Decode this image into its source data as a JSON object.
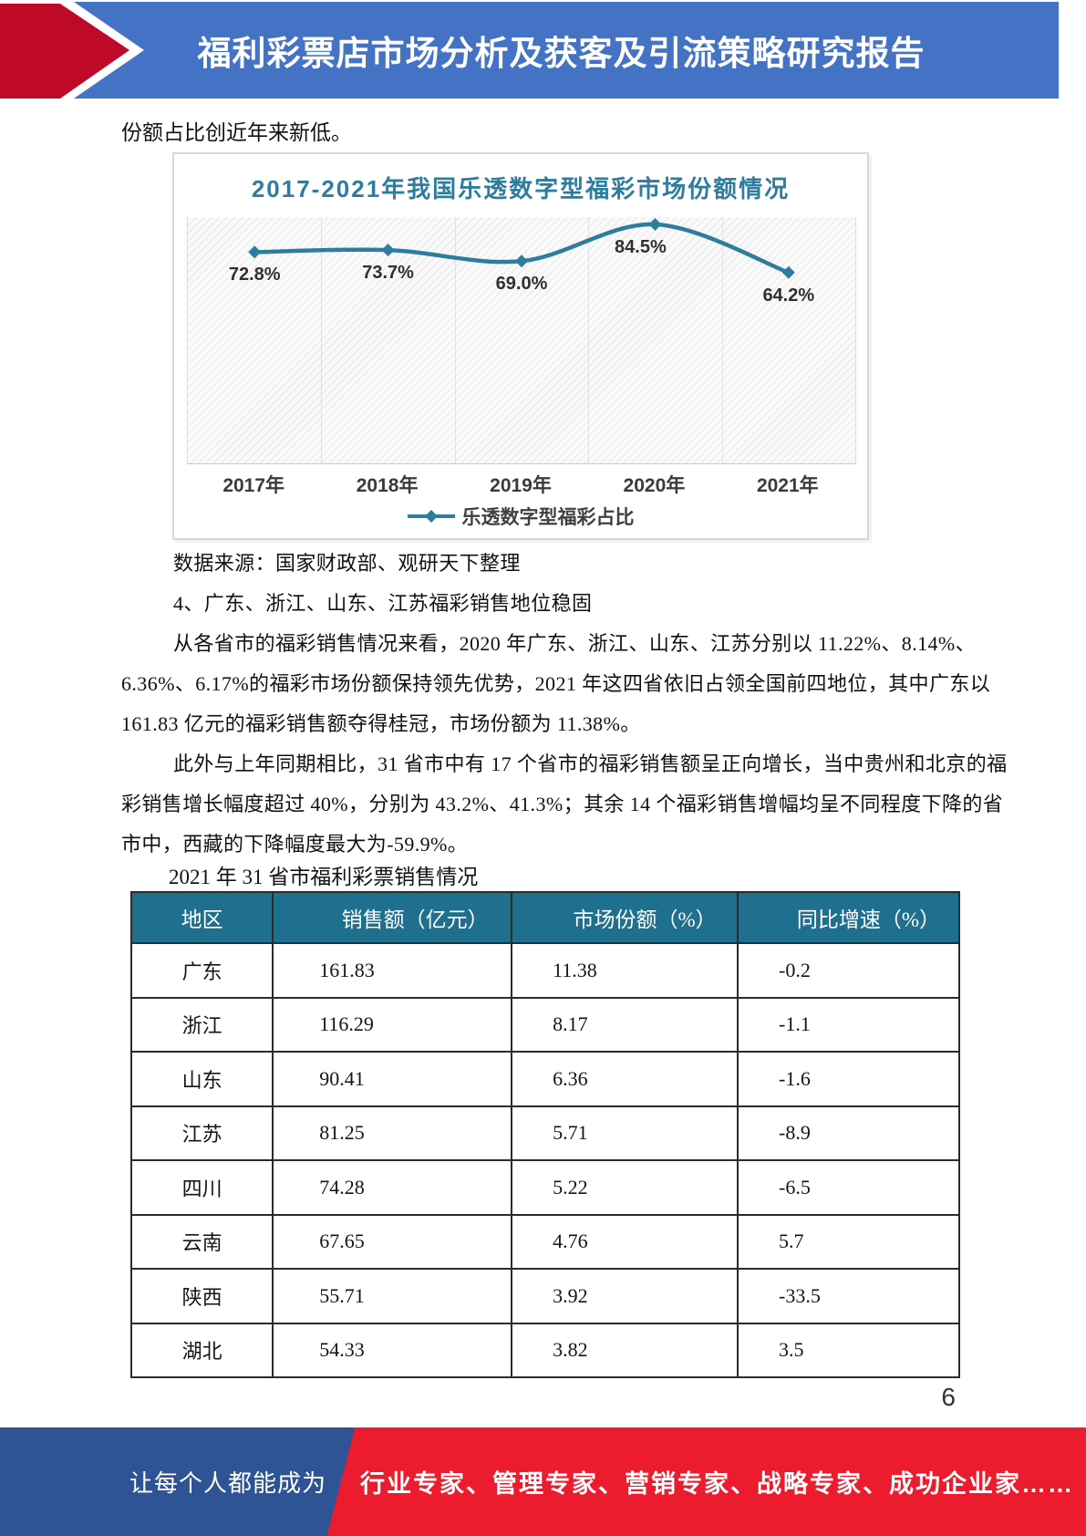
{
  "header": {
    "title": "福利彩票店市场分析及获客及引流策略研究报告"
  },
  "intro": {
    "line": "份额占比创近年来新低。"
  },
  "chart_data": {
    "type": "line",
    "title": "2017-2021年我国乐透数字型福彩市场份额情况",
    "categories": [
      "2017年",
      "2018年",
      "2019年",
      "2020年",
      "2021年"
    ],
    "values": [
      72.8,
      73.7,
      69.0,
      84.5,
      64.2
    ],
    "point_labels": [
      "72.8%",
      "73.7%",
      "69.0%",
      "84.5%",
      "64.2%"
    ],
    "legend": "乐透数字型福彩占比",
    "legend_position": "bottom",
    "data_labels_shown": true,
    "y_axis_shown": false,
    "line_color": "#2E7C9E"
  },
  "body": {
    "source_note": "数据来源：国家财政部、观研天下整理",
    "heading": "4、广东、浙江、山东、江苏福彩销售地位稳固",
    "para1_line1": "从各省市的福彩销售情况来看，2020 年广东、浙江、山东、江苏分别以 11.22%、8.14%、",
    "para1_line2": "6.36%、6.17%的福彩市场份额保持领先优势，2021 年这四省依旧占领全国前四地位，其中广东以",
    "para1_line3": "161.83 亿元的福彩销售额夺得桂冠，市场份额为 11.38%。",
    "para2_line1": "此外与上年同期相比，31 省市中有 17 个省市的福彩销售额呈正向增长，当中贵州和北京的福",
    "para2_line2": "彩销售增长幅度超过 40%，分别为 43.2%、41.3%；其余 14 个福彩销售增幅均呈不同程度下降的省",
    "para2_line3": "市中，西藏的下降幅度最大为-59.9%。",
    "table_caption": "2021 年 31 省市福利彩票销售情况"
  },
  "table": {
    "headers": [
      "地区",
      "销售额（亿元）",
      "市场份额（%）",
      "同比增速（%）"
    ],
    "rows": [
      [
        "广东",
        "161.83",
        "11.38",
        "-0.2"
      ],
      [
        "浙江",
        "116.29",
        "8.17",
        "-1.1"
      ],
      [
        "山东",
        "90.41",
        "6.36",
        "-1.6"
      ],
      [
        "江苏",
        "81.25",
        "5.71",
        "-8.9"
      ],
      [
        "四川",
        "74.28",
        "5.22",
        "-6.5"
      ],
      [
        "云南",
        "67.65",
        "4.76",
        "5.7"
      ],
      [
        "陕西",
        "55.71",
        "3.92",
        "-33.5"
      ],
      [
        "湖北",
        "54.33",
        "3.82",
        "3.5"
      ]
    ],
    "header_bg": "#1F6F8F"
  },
  "page": {
    "number": "6"
  },
  "footer": {
    "left": "让每个人都能成为",
    "right": "行业专家、管理专家、营销专家、战略专家、成功企业家……",
    "blue": "#2F5496",
    "red": "#EC1B2E"
  },
  "colors": {
    "banner_blue": "#4472C4",
    "arrow_red": "#BE0A26",
    "chart_accent": "#2E7C9E"
  }
}
